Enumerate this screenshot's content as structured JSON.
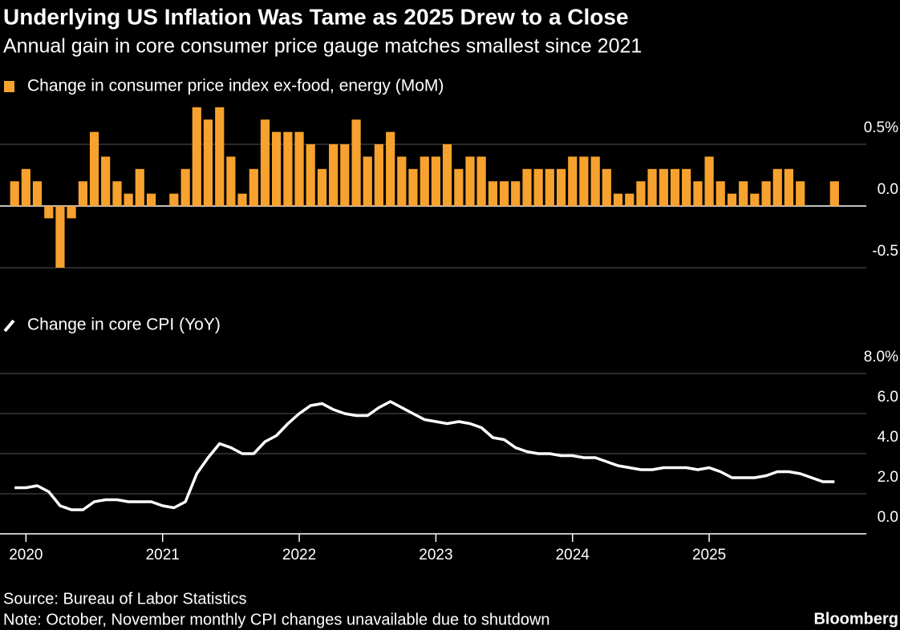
{
  "title": "Underlying US Inflation Was Tame as 2025 Drew to a Close",
  "subtitle": "Annual gain in core consumer price gauge matches smallest since 2021",
  "source": "Source: Bureau of Labor Statistics",
  "note": "Note: October, November monthly CPI changes unavailable due to shutdown",
  "logo": "Bloomberg",
  "chart_data": [
    {
      "type": "bar",
      "x": [
        2019.917,
        2020,
        2020.083,
        2020.167,
        2020.25,
        2020.333,
        2020.417,
        2020.5,
        2020.583,
        2020.667,
        2020.75,
        2020.833,
        2020.917,
        2021,
        2021.083,
        2021.167,
        2021.25,
        2021.333,
        2021.417,
        2021.5,
        2021.583,
        2021.667,
        2021.75,
        2021.833,
        2021.917,
        2022,
        2022.083,
        2022.167,
        2022.25,
        2022.333,
        2022.417,
        2022.5,
        2022.583,
        2022.667,
        2022.75,
        2022.833,
        2022.917,
        2023,
        2023.083,
        2023.167,
        2023.25,
        2023.333,
        2023.417,
        2023.5,
        2023.583,
        2023.667,
        2023.75,
        2023.833,
        2023.917,
        2024,
        2024.083,
        2024.167,
        2024.25,
        2024.333,
        2024.417,
        2024.5,
        2024.583,
        2024.667,
        2024.75,
        2024.833,
        2024.917,
        2025,
        2025.083,
        2025.167,
        2025.25,
        2025.333,
        2025.417,
        2025.5,
        2025.583,
        2025.667,
        2025.75,
        2025.833,
        2025.917
      ],
      "xlim": [
        2019.81,
        2026.15
      ],
      "series": [
        {
          "name": "Change in consumer price index ex-food, energy (MoM)",
          "color": "#f7a22e",
          "values": [
            0.2,
            0.3,
            0.2,
            -0.1,
            -0.5,
            -0.1,
            0.2,
            0.6,
            0.4,
            0.2,
            0.1,
            0.3,
            0.1,
            0,
            0.1,
            0.3,
            0.8,
            0.7,
            0.8,
            0.4,
            0.1,
            0.3,
            0.7,
            0.6,
            0.6,
            0.6,
            0.5,
            0.3,
            0.5,
            0.5,
            0.7,
            0.4,
            0.5,
            0.6,
            0.4,
            0.3,
            0.4,
            0.4,
            0.5,
            0.3,
            0.4,
            0.4,
            0.2,
            0.2,
            0.2,
            0.3,
            0.3,
            0.3,
            0.3,
            0.4,
            0.4,
            0.4,
            0.3,
            0.1,
            0.1,
            0.2,
            0.3,
            0.3,
            0.3,
            0.3,
            0.2,
            0.4,
            0.2,
            0.1,
            0.2,
            0.1,
            0.2,
            0.3,
            0.3,
            0.2,
            null,
            null,
            0.2
          ]
        }
      ],
      "ylim": [
        -0.5,
        0.8
      ],
      "yticks": [
        -0.5,
        {
          "value": 0,
          "label": "0.0"
        },
        {
          "value": 0.5,
          "label": "0.5%"
        }
      ],
      "grid": true
    },
    {
      "type": "line",
      "x": [
        2019.917,
        2020,
        2020.083,
        2020.167,
        2020.25,
        2020.333,
        2020.417,
        2020.5,
        2020.583,
        2020.667,
        2020.75,
        2020.833,
        2020.917,
        2021,
        2021.083,
        2021.167,
        2021.25,
        2021.333,
        2021.417,
        2021.5,
        2021.583,
        2021.667,
        2021.75,
        2021.833,
        2021.917,
        2022,
        2022.083,
        2022.167,
        2022.25,
        2022.333,
        2022.417,
        2022.5,
        2022.583,
        2022.667,
        2022.75,
        2022.833,
        2022.917,
        2023,
        2023.083,
        2023.167,
        2023.25,
        2023.333,
        2023.417,
        2023.5,
        2023.583,
        2023.667,
        2023.75,
        2023.833,
        2023.917,
        2024,
        2024.083,
        2024.167,
        2024.25,
        2024.333,
        2024.417,
        2024.5,
        2024.583,
        2024.667,
        2024.75,
        2024.833,
        2024.917,
        2025,
        2025.083,
        2025.167,
        2025.25,
        2025.333,
        2025.417,
        2025.5,
        2025.583,
        2025.667,
        2025.75,
        2025.833,
        2025.917
      ],
      "xlim": [
        2019.81,
        2026.15
      ],
      "xticks": [
        2020,
        2021,
        2022,
        2023,
        2024,
        2025
      ],
      "series": [
        {
          "name": "Change in core CPI (YoY)",
          "color": "#ffffff",
          "values": [
            2.3,
            2.3,
            2.4,
            2.1,
            1.4,
            1.2,
            1.2,
            1.6,
            1.7,
            1.7,
            1.6,
            1.6,
            1.6,
            1.4,
            1.3,
            1.6,
            3.0,
            3.8,
            4.5,
            4.3,
            4.0,
            4.0,
            4.6,
            4.9,
            5.5,
            6.0,
            6.4,
            6.5,
            6.2,
            6.0,
            5.9,
            5.9,
            6.3,
            6.6,
            6.3,
            6.0,
            5.7,
            5.6,
            5.5,
            5.6,
            5.5,
            5.3,
            4.8,
            4.7,
            4.3,
            4.1,
            4.0,
            4.0,
            3.9,
            3.9,
            3.8,
            3.8,
            3.6,
            3.4,
            3.3,
            3.2,
            3.2,
            3.3,
            3.3,
            3.3,
            3.2,
            3.3,
            3.1,
            2.8,
            2.8,
            2.8,
            2.9,
            3.1,
            3.1,
            3.0,
            2.8,
            2.6,
            2.6
          ]
        }
      ],
      "ylim": [
        0,
        8
      ],
      "yticks": [
        {
          "value": 0,
          "label": "0.0"
        },
        {
          "value": 2,
          "label": "2.0"
        },
        {
          "value": 4,
          "label": "4.0"
        },
        {
          "value": 6,
          "label": "6.0"
        },
        {
          "value": 8,
          "label": "8.0%"
        }
      ],
      "grid": true
    }
  ]
}
